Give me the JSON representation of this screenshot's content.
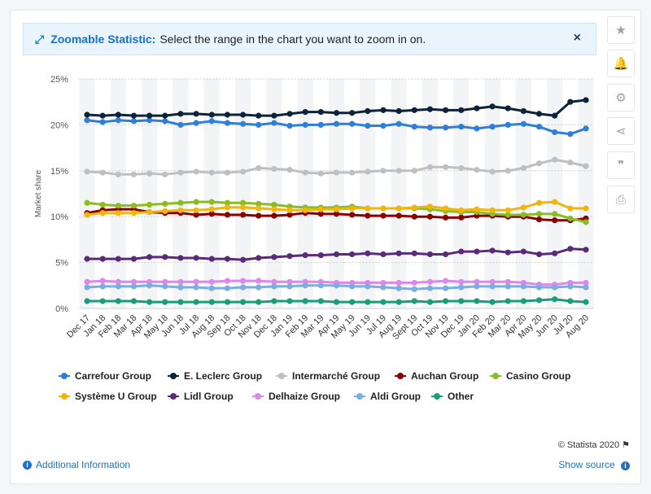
{
  "banner": {
    "icon": "expand-icon",
    "title": "Zoomable Statistic:",
    "text": "Select the range in the chart you want to zoom in on.",
    "close_label": "×"
  },
  "sidebar": [
    {
      "name": "star-icon",
      "glyph": "★"
    },
    {
      "name": "bell-icon",
      "glyph": "🔔"
    },
    {
      "name": "gear-icon",
      "glyph": "⚙"
    },
    {
      "name": "share-icon",
      "glyph": "⋖"
    },
    {
      "name": "quote-icon",
      "glyph": "❞"
    },
    {
      "name": "print-icon",
      "glyph": "⎙"
    }
  ],
  "footer": {
    "additional_info": "Additional Information",
    "show_source": "Show source",
    "credit": "© Statista 2020"
  },
  "chart_data": {
    "type": "line",
    "ylabel": "Market share",
    "xlabel": "",
    "ylim": [
      0,
      25
    ],
    "yticks": [
      0,
      5,
      10,
      15,
      20,
      25
    ],
    "ytick_labels": [
      "0%",
      "5%",
      "10%",
      "15%",
      "20%",
      "25%"
    ],
    "grid": true,
    "legend_position": "bottom",
    "categories": [
      "Dec 17",
      "Jan 18",
      "Feb 18",
      "Mar 18",
      "Apr 18",
      "May 18",
      "Jun 18",
      "Jul 18",
      "Aug 18",
      "Sep 18",
      "Oct 18",
      "Nov 18",
      "Dec 18",
      "Jan 19",
      "Feb 19",
      "Mar 19",
      "Apr 19",
      "May 19",
      "Jun 19",
      "Jul 19",
      "Aug 19",
      "Sept 19",
      "Oct 19",
      "Nov 19",
      "Dec 19",
      "Jan 20",
      "Feb 20",
      "Mar 20",
      "Apr 20",
      "May 20",
      "Jun 20",
      "Jul 20",
      "Aug 20"
    ],
    "series": [
      {
        "name": "Carrefour Group",
        "color": "#2f7ed8",
        "values": [
          20.5,
          20.3,
          20.5,
          20.4,
          20.5,
          20.4,
          20.0,
          20.2,
          20.4,
          20.2,
          20.1,
          20.0,
          20.2,
          19.9,
          20.0,
          20.0,
          20.1,
          20.1,
          19.9,
          19.9,
          20.1,
          19.8,
          19.7,
          19.7,
          19.8,
          19.6,
          19.8,
          20.0,
          20.1,
          19.8,
          19.2,
          19.0,
          19.6
        ]
      },
      {
        "name": "E. Leclerc Group",
        "color": "#0d233a",
        "values": [
          21.1,
          21.0,
          21.1,
          21.0,
          21.0,
          21.0,
          21.2,
          21.2,
          21.1,
          21.1,
          21.1,
          21.0,
          21.0,
          21.2,
          21.4,
          21.4,
          21.3,
          21.3,
          21.5,
          21.6,
          21.5,
          21.6,
          21.7,
          21.6,
          21.6,
          21.8,
          22.0,
          21.8,
          21.5,
          21.2,
          21.0,
          22.5,
          22.7
        ]
      },
      {
        "name": "Intermarché Group",
        "color": "#bfbfbf",
        "values": [
          14.9,
          14.8,
          14.6,
          14.6,
          14.7,
          14.6,
          14.8,
          14.9,
          14.8,
          14.8,
          14.9,
          15.3,
          15.2,
          15.1,
          14.8,
          14.7,
          14.8,
          14.8,
          14.9,
          15.0,
          15.0,
          15.0,
          15.4,
          15.4,
          15.3,
          15.1,
          14.9,
          15.0,
          15.3,
          15.8,
          16.2,
          15.9,
          15.5
        ]
      },
      {
        "name": "Auchan Group",
        "color": "#8b0000",
        "values": [
          10.4,
          10.7,
          10.8,
          10.8,
          10.5,
          10.4,
          10.4,
          10.2,
          10.3,
          10.2,
          10.2,
          10.1,
          10.1,
          10.2,
          10.4,
          10.3,
          10.3,
          10.2,
          10.1,
          10.1,
          10.1,
          10.0,
          10.0,
          9.9,
          9.9,
          10.1,
          10.1,
          10.0,
          10.0,
          9.7,
          9.6,
          9.6,
          9.8
        ]
      },
      {
        "name": "Casino Group",
        "color": "#8bbc21",
        "values": [
          11.5,
          11.3,
          11.2,
          11.2,
          11.3,
          11.4,
          11.5,
          11.6,
          11.6,
          11.5,
          11.5,
          11.4,
          11.3,
          11.1,
          11.0,
          11.0,
          11.0,
          11.1,
          10.9,
          10.9,
          10.9,
          10.9,
          10.8,
          10.6,
          10.5,
          10.5,
          10.3,
          10.2,
          10.2,
          10.3,
          10.3,
          9.8,
          9.4
        ]
      },
      {
        "name": "Système U Group",
        "color": "#f2b50f",
        "values": [
          10.2,
          10.4,
          10.4,
          10.4,
          10.5,
          10.6,
          10.7,
          10.7,
          10.8,
          11.0,
          11.0,
          10.9,
          10.8,
          10.7,
          10.7,
          10.8,
          10.8,
          10.9,
          10.9,
          10.9,
          10.9,
          11.0,
          11.1,
          10.9,
          10.7,
          10.8,
          10.7,
          10.7,
          11.0,
          11.5,
          11.6,
          10.9,
          10.9
        ]
      },
      {
        "name": "Lidl Group",
        "color": "#5c2a7a",
        "values": [
          5.4,
          5.4,
          5.4,
          5.4,
          5.6,
          5.6,
          5.5,
          5.5,
          5.4,
          5.4,
          5.3,
          5.5,
          5.6,
          5.7,
          5.8,
          5.8,
          5.9,
          5.9,
          6.0,
          5.9,
          6.0,
          6.0,
          5.9,
          5.9,
          6.2,
          6.2,
          6.3,
          6.1,
          6.2,
          5.9,
          6.0,
          6.5,
          6.4
        ]
      },
      {
        "name": "Delhaize Group",
        "color": "#dd88e8",
        "values": [
          2.9,
          3.0,
          2.9,
          2.9,
          2.9,
          2.9,
          2.9,
          2.9,
          2.9,
          3.0,
          3.0,
          3.0,
          2.9,
          2.9,
          2.9,
          2.9,
          2.8,
          2.8,
          2.8,
          2.8,
          2.8,
          2.8,
          2.9,
          3.0,
          2.9,
          2.9,
          2.9,
          2.9,
          2.8,
          2.6,
          2.6,
          2.8,
          2.8
        ]
      },
      {
        "name": "Aldi Group",
        "color": "#7aaee3",
        "values": [
          2.3,
          2.4,
          2.4,
          2.4,
          2.5,
          2.4,
          2.3,
          2.3,
          2.2,
          2.2,
          2.3,
          2.3,
          2.4,
          2.4,
          2.5,
          2.5,
          2.5,
          2.4,
          2.4,
          2.3,
          2.2,
          2.1,
          2.2,
          2.2,
          2.3,
          2.4,
          2.4,
          2.4,
          2.4,
          2.3,
          2.3,
          2.4,
          2.3
        ]
      },
      {
        "name": "Other",
        "color": "#1a9e79",
        "values": [
          0.8,
          0.8,
          0.8,
          0.8,
          0.7,
          0.7,
          0.7,
          0.7,
          0.7,
          0.7,
          0.7,
          0.7,
          0.8,
          0.8,
          0.8,
          0.8,
          0.7,
          0.7,
          0.7,
          0.7,
          0.7,
          0.8,
          0.7,
          0.8,
          0.8,
          0.8,
          0.7,
          0.8,
          0.8,
          0.9,
          1.0,
          0.8,
          0.7
        ]
      }
    ]
  }
}
